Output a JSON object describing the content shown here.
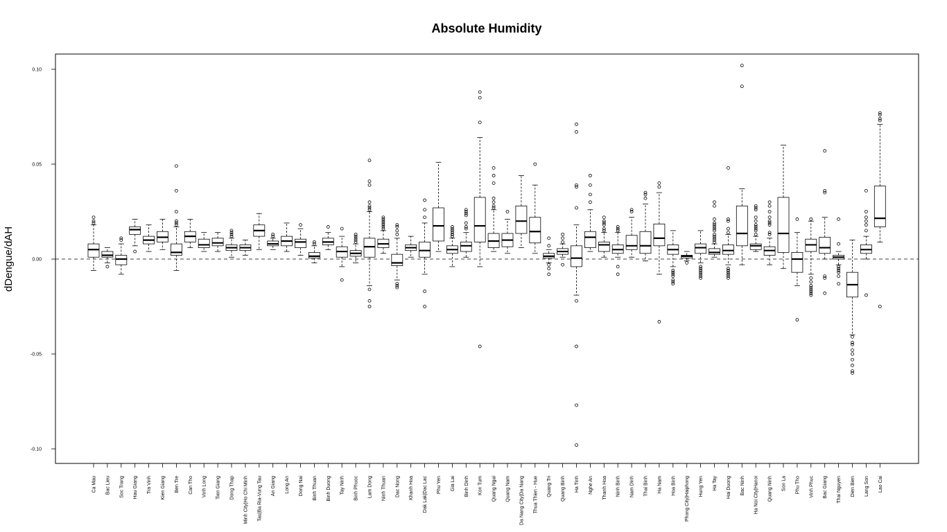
{
  "chart_data": {
    "type": "boxplot",
    "title": "Absolute Humidity",
    "xlabel": "",
    "ylabel": "dDengue/dAH",
    "ylim": [
      -0.108,
      0.108
    ],
    "yticks": [
      -0.1,
      -0.05,
      0.0,
      0.05,
      0.1
    ],
    "ytick_labels": [
      "-0.10",
      "-0.05",
      "0.00",
      "0.05",
      "0.10"
    ],
    "reference_line": 0,
    "categories": [
      "Ca Mau",
      "Bac Lieu",
      "Soc Trang",
      "Hau Giang",
      "Tra Vinh",
      "Kien Giang",
      "Ben Tre",
      "Can Tho",
      "Vinh Long",
      "Tien Giang",
      "Dong Thap",
      "Minh City|Ho Chi Minh",
      "Tau|Ba Ria-Vung Tau",
      "An Giang",
      "Long An",
      "Dong Nai",
      "Binh Thuan",
      "Binh Duong",
      "Tay Ninh",
      "Binh Phuoc",
      "Lam Dong",
      "Ninh Thuan",
      "Dac Nong",
      "Khanh Hoa",
      "Dak Lak|Dac Lac",
      "Phu Yen",
      "Gia Lai",
      "Binh Dinh",
      "Kon Tum",
      "Quang Ngai",
      "Quang Nam",
      "Da Nang City|Da Nang",
      "Thua Thien - Hue",
      "Quang Tri",
      "Quang Binh",
      "Ha Tinh",
      "Nghe An",
      "Thanh Hoa",
      "Ninh Binh",
      "Nam Dinh",
      "Thai Binh",
      "Ha Nam",
      "Hoa Binh",
      "Phong City|Haiphong",
      "Hung Yen",
      "Ha Tay",
      "Hai Duong",
      "Bac Ninh",
      "Ha Noi City|Hanoi",
      "Quang Ninh",
      "Son La",
      "Phu Tho",
      "Vinh Phuc",
      "Bac Giang",
      "Thai Nguyen",
      "Dien Bien",
      "Lang Son",
      "Lao Cai"
    ],
    "boxes": [
      {
        "wl": -0.006,
        "q1": 0.001,
        "med": 0.005,
        "q3": 0.008,
        "wh": 0.018,
        "out": [
          0.019,
          0.02,
          0.022
        ]
      },
      {
        "wl": -0.002,
        "q1": 0.001,
        "med": 0.002,
        "q3": 0.004,
        "wh": 0.006,
        "out": [
          -0.004
        ]
      },
      {
        "wl": -0.008,
        "q1": -0.003,
        "med": 0.0,
        "q3": 0.002,
        "wh": 0.008,
        "out": [
          0.01,
          0.011
        ]
      },
      {
        "wl": 0.007,
        "q1": 0.013,
        "med": 0.0155,
        "q3": 0.017,
        "wh": 0.021,
        "out": [
          0.004
        ]
      },
      {
        "wl": 0.004,
        "q1": 0.008,
        "med": 0.01,
        "q3": 0.012,
        "wh": 0.018,
        "out": []
      },
      {
        "wl": 0.005,
        "q1": 0.009,
        "med": 0.0115,
        "q3": 0.0145,
        "wh": 0.021,
        "out": []
      },
      {
        "wl": -0.006,
        "q1": 0.002,
        "med": 0.0035,
        "q3": 0.008,
        "wh": 0.017,
        "out": [
          0.018,
          0.019,
          0.02,
          0.025,
          0.036,
          0.049
        ]
      },
      {
        "wl": 0.006,
        "q1": 0.009,
        "med": 0.012,
        "q3": 0.0145,
        "wh": 0.021,
        "out": []
      },
      {
        "wl": 0.004,
        "q1": 0.006,
        "med": 0.0075,
        "q3": 0.0105,
        "wh": 0.014,
        "out": []
      },
      {
        "wl": 0.004,
        "q1": 0.007,
        "med": 0.0085,
        "q3": 0.011,
        "wh": 0.014,
        "out": []
      },
      {
        "wl": 0.001,
        "q1": 0.0045,
        "med": 0.006,
        "q3": 0.0075,
        "wh": 0.011,
        "out": [
          0.012,
          0.013,
          0.014,
          0.015
        ]
      },
      {
        "wl": 0.002,
        "q1": 0.0045,
        "med": 0.006,
        "q3": 0.0075,
        "wh": 0.01,
        "out": []
      },
      {
        "wl": 0.005,
        "q1": 0.012,
        "med": 0.015,
        "q3": 0.018,
        "wh": 0.024,
        "out": []
      },
      {
        "wl": 0.005,
        "q1": 0.007,
        "med": 0.008,
        "q3": 0.0095,
        "wh": 0.011,
        "out": [
          0.012,
          0.013
        ]
      },
      {
        "wl": 0.004,
        "q1": 0.007,
        "med": 0.0095,
        "q3": 0.012,
        "wh": 0.019,
        "out": []
      },
      {
        "wl": 0.002,
        "q1": 0.006,
        "med": 0.009,
        "q3": 0.0105,
        "wh": 0.016,
        "out": [
          0.018
        ]
      },
      {
        "wl": -0.002,
        "q1": 0.0005,
        "med": 0.0015,
        "q3": 0.0035,
        "wh": 0.007,
        "out": [
          0.008,
          0.009
        ]
      },
      {
        "wl": 0.005,
        "q1": 0.0075,
        "med": 0.009,
        "q3": 0.011,
        "wh": 0.014,
        "out": [
          0.017
        ]
      },
      {
        "wl": -0.004,
        "q1": 0.001,
        "med": 0.004,
        "q3": 0.0065,
        "wh": 0.012,
        "out": [
          -0.011,
          0.016
        ]
      },
      {
        "wl": -0.002,
        "q1": 0.0015,
        "med": 0.003,
        "q3": 0.0045,
        "wh": 0.008,
        "out": [
          0.009,
          0.01,
          0.011,
          0.012,
          0.013
        ]
      },
      {
        "wl": -0.014,
        "q1": 0.001,
        "med": 0.0065,
        "q3": 0.011,
        "wh": 0.025,
        "out": [
          -0.025,
          -0.022,
          -0.016,
          0.026,
          0.027,
          0.028,
          0.03,
          0.039,
          0.041,
          0.052
        ]
      },
      {
        "wl": 0.003,
        "q1": 0.006,
        "med": 0.008,
        "q3": 0.0105,
        "wh": 0.015,
        "out": [
          0.016,
          0.017,
          0.018,
          0.019,
          0.02,
          0.021,
          0.022
        ]
      },
      {
        "wl": -0.011,
        "q1": -0.0035,
        "med": -0.002,
        "q3": 0.0025,
        "wh": 0.011,
        "out": [
          -0.015,
          -0.014,
          -0.013,
          0.013,
          0.015,
          0.017,
          0.018
        ]
      },
      {
        "wl": 0.001,
        "q1": 0.0045,
        "med": 0.006,
        "q3": 0.0075,
        "wh": 0.012,
        "out": []
      },
      {
        "wl": -0.008,
        "q1": 0.001,
        "med": 0.0045,
        "q3": 0.009,
        "wh": 0.019,
        "out": [
          -0.025,
          -0.017,
          0.022,
          0.026,
          0.031
        ]
      },
      {
        "wl": 0.004,
        "q1": 0.0095,
        "med": 0.0175,
        "q3": 0.027,
        "wh": 0.051,
        "out": []
      },
      {
        "wl": -0.004,
        "q1": 0.003,
        "med": 0.005,
        "q3": 0.007,
        "wh": 0.011,
        "out": [
          0.012,
          0.013,
          0.014,
          0.015,
          0.016,
          0.017
        ]
      },
      {
        "wl": 0.001,
        "q1": 0.004,
        "med": 0.007,
        "q3": 0.009,
        "wh": 0.014,
        "out": [
          0.016,
          0.017,
          0.019,
          0.023,
          0.024,
          0.025,
          0.026
        ]
      },
      {
        "wl": -0.004,
        "q1": 0.009,
        "med": 0.0175,
        "q3": 0.0325,
        "wh": 0.064,
        "out": [
          -0.046,
          0.072,
          0.085,
          0.088
        ]
      },
      {
        "wl": 0.004,
        "q1": 0.006,
        "med": 0.0095,
        "q3": 0.0135,
        "wh": 0.026,
        "out": [
          0.027,
          0.028,
          0.03,
          0.032,
          0.04,
          0.044,
          0.048
        ]
      },
      {
        "wl": 0.003,
        "q1": 0.0065,
        "med": 0.01,
        "q3": 0.0135,
        "wh": 0.021,
        "out": [
          0.025
        ]
      },
      {
        "wl": 0.006,
        "q1": 0.0135,
        "med": 0.02,
        "q3": 0.028,
        "wh": 0.044,
        "out": []
      },
      {
        "wl": 0.003,
        "q1": 0.0085,
        "med": 0.0145,
        "q3": 0.022,
        "wh": 0.039,
        "out": [
          0.05
        ]
      },
      {
        "wl": -0.002,
        "q1": 0.0005,
        "med": 0.0015,
        "q3": 0.003,
        "wh": 0.005,
        "out": [
          -0.008,
          -0.005,
          -0.003,
          0.007,
          0.011
        ]
      },
      {
        "wl": 0.001,
        "q1": 0.0025,
        "med": 0.004,
        "q3": 0.0055,
        "wh": 0.008,
        "out": [
          -0.003,
          0.009,
          0.011,
          0.013
        ]
      },
      {
        "wl": -0.019,
        "q1": -0.004,
        "med": 0.0005,
        "q3": 0.007,
        "wh": 0.018,
        "out": [
          -0.098,
          -0.077,
          -0.046,
          -0.022,
          0.027,
          0.038,
          0.039,
          0.067,
          0.071
        ]
      },
      {
        "wl": 0.004,
        "q1": 0.006,
        "med": 0.0115,
        "q3": 0.0145,
        "wh": 0.026,
        "out": [
          0.03,
          0.034,
          0.039,
          0.044
        ]
      },
      {
        "wl": 0.001,
        "q1": 0.004,
        "med": 0.0075,
        "q3": 0.009,
        "wh": 0.014,
        "out": [
          0.015,
          0.016,
          0.018,
          0.019,
          0.02,
          0.022
        ]
      },
      {
        "wl": 0.001,
        "q1": 0.003,
        "med": 0.005,
        "q3": 0.0075,
        "wh": 0.014,
        "out": [
          -0.008,
          -0.004,
          0.015,
          0.016,
          0.017
        ]
      },
      {
        "wl": 0.001,
        "q1": 0.005,
        "med": 0.007,
        "q3": 0.0125,
        "wh": 0.022,
        "out": [
          0.025,
          0.026
        ]
      },
      {
        "wl": -0.001,
        "q1": 0.003,
        "med": 0.007,
        "q3": 0.0145,
        "wh": 0.029,
        "out": [
          0.032,
          0.034,
          0.035
        ]
      },
      {
        "wl": -0.008,
        "q1": 0.007,
        "med": 0.011,
        "q3": 0.0185,
        "wh": 0.035,
        "out": [
          -0.033,
          0.038,
          0.04
        ]
      },
      {
        "wl": -0.004,
        "q1": 0.0025,
        "med": 0.005,
        "q3": 0.0075,
        "wh": 0.015,
        "out": [
          -0.013,
          -0.012,
          -0.011,
          -0.009,
          -0.008,
          -0.007,
          -0.006
        ]
      },
      {
        "wl": -0.001,
        "q1": 0.0005,
        "med": 0.0015,
        "q3": 0.002,
        "wh": 0.004,
        "out": [
          -0.002
        ]
      },
      {
        "wl": -0.002,
        "q1": 0.003,
        "med": 0.006,
        "q3": 0.008,
        "wh": 0.015,
        "out": [
          -0.01,
          -0.009,
          -0.008,
          -0.007,
          -0.006,
          -0.005,
          -0.004
        ]
      },
      {
        "wl": 0.001,
        "q1": 0.0025,
        "med": 0.0035,
        "q3": 0.0055,
        "wh": 0.008,
        "out": [
          0.009,
          0.01,
          0.011,
          0.012,
          0.013,
          0.015,
          0.016,
          0.017,
          0.018,
          0.019,
          0.021,
          0.028,
          0.03
        ]
      },
      {
        "wl": -0.003,
        "q1": 0.0025,
        "med": 0.0045,
        "q3": 0.0075,
        "wh": 0.013,
        "out": [
          -0.01,
          -0.009,
          -0.008,
          -0.007,
          -0.006,
          -0.005,
          0.014,
          0.016,
          0.02,
          0.021,
          0.048
        ]
      },
      {
        "wl": -0.003,
        "q1": 0.007,
        "med": 0.0135,
        "q3": 0.028,
        "wh": 0.037,
        "out": [
          0.091,
          0.102
        ]
      },
      {
        "wl": 0.004,
        "q1": 0.005,
        "med": 0.007,
        "q3": 0.008,
        "wh": 0.012,
        "out": [
          0.013,
          0.015,
          0.016,
          0.017,
          0.018,
          0.02,
          0.022,
          0.026,
          0.027,
          0.028
        ]
      },
      {
        "wl": -0.003,
        "q1": 0.002,
        "med": 0.0045,
        "q3": 0.0065,
        "wh": 0.011,
        "out": [
          0.013,
          0.014,
          0.018,
          0.019,
          0.02,
          0.022,
          0.025,
          0.028,
          0.03
        ]
      },
      {
        "wl": -0.005,
        "q1": 0.0035,
        "med": 0.0135,
        "q3": 0.0325,
        "wh": 0.06,
        "out": []
      },
      {
        "wl": -0.014,
        "q1": -0.007,
        "med": 0.0,
        "q3": 0.0035,
        "wh": 0.014,
        "out": [
          -0.032,
          0.021
        ]
      },
      {
        "wl": -0.008,
        "q1": 0.004,
        "med": 0.0075,
        "q3": 0.0105,
        "wh": 0.02,
        "out": [
          -0.019,
          -0.018,
          -0.017,
          -0.016,
          -0.015,
          -0.014,
          -0.012,
          -0.01,
          0.021
        ]
      },
      {
        "wl": 0.0,
        "q1": 0.003,
        "med": 0.006,
        "q3": 0.0115,
        "wh": 0.022,
        "out": [
          -0.018,
          -0.01,
          -0.009,
          0.035,
          0.036,
          0.057
        ]
      },
      {
        "wl": -0.003,
        "q1": 0.0,
        "med": 0.001,
        "q3": 0.002,
        "wh": 0.004,
        "out": [
          -0.013,
          -0.009,
          -0.007,
          -0.006,
          -0.005,
          -0.004,
          0.008,
          0.021
        ]
      },
      {
        "wl": -0.04,
        "q1": -0.02,
        "med": -0.0135,
        "q3": -0.007,
        "wh": 0.01,
        "out": [
          -0.06,
          -0.059,
          -0.056,
          -0.053,
          -0.05,
          -0.048,
          -0.045,
          -0.044,
          -0.041
        ]
      },
      {
        "wl": 0.0,
        "q1": 0.003,
        "med": 0.005,
        "q3": 0.0075,
        "wh": 0.012,
        "out": [
          -0.019,
          0.015,
          0.018,
          0.02,
          0.022,
          0.025,
          0.036
        ]
      },
      {
        "wl": 0.009,
        "q1": 0.017,
        "med": 0.0215,
        "q3": 0.0385,
        "wh": 0.071,
        "out": [
          -0.025,
          0.073,
          0.074,
          0.076,
          0.077
        ]
      }
    ]
  }
}
